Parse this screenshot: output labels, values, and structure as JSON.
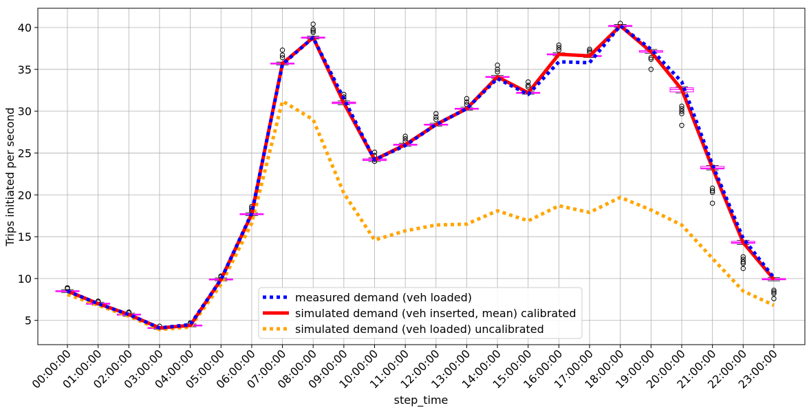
{
  "chart_data": {
    "type": "line",
    "title": "",
    "xlabel": "step_time",
    "ylabel": "Trips initiated per second",
    "categories": [
      "00:00:00",
      "01:00:00",
      "02:00:00",
      "03:00:00",
      "04:00:00",
      "05:00:00",
      "06:00:00",
      "07:00:00",
      "08:00:00",
      "09:00:00",
      "10:00:00",
      "11:00:00",
      "12:00:00",
      "13:00:00",
      "14:00:00",
      "15:00:00",
      "16:00:00",
      "17:00:00",
      "18:00:00",
      "19:00:00",
      "20:00:00",
      "21:00:00",
      "22:00:00",
      "23:00:00"
    ],
    "yticks": [
      5,
      10,
      15,
      20,
      25,
      30,
      35,
      40
    ],
    "ylim": [
      2.1,
      42.3
    ],
    "grid": true,
    "legend_position": "bottom-center",
    "series": [
      {
        "name": "measured demand (veh loaded)",
        "style": "dotted",
        "color": "#0000ff",
        "values": [
          8.5,
          7.0,
          5.7,
          4.1,
          4.5,
          9.9,
          17.8,
          35.6,
          38.8,
          31.5,
          24.2,
          25.9,
          28.4,
          30.3,
          33.9,
          32.0,
          35.9,
          35.8,
          40.2,
          37.4,
          33.5,
          23.6,
          14.8,
          10.1
        ]
      },
      {
        "name": "simulated demand (veh inserted, mean) calibrated",
        "style": "solid",
        "color": "#ff0000",
        "values": [
          8.5,
          7.0,
          5.7,
          4.1,
          4.4,
          9.9,
          17.7,
          35.7,
          38.8,
          31.0,
          24.2,
          26.0,
          28.4,
          30.3,
          34.1,
          32.2,
          36.8,
          36.6,
          40.2,
          37.1,
          32.6,
          23.2,
          14.3,
          9.9
        ]
      },
      {
        "name": "simulated demand (veh loaded) uncalibrated",
        "style": "dotted",
        "color": "#ffa500",
        "values": [
          8.1,
          6.8,
          5.5,
          3.9,
          4.2,
          9.3,
          16.6,
          31.2,
          29.0,
          20.2,
          14.6,
          15.7,
          16.4,
          16.5,
          18.1,
          16.9,
          18.7,
          17.9,
          19.7,
          18.2,
          16.4,
          12.4,
          8.5,
          6.8
        ]
      }
    ],
    "boxplot": {
      "box_color": "#ff00ff",
      "boxes": [
        {
          "median": 8.5,
          "q1": 8.45,
          "q3": 8.55,
          "outliers": [
            8.8,
            8.9
          ]
        },
        {
          "median": 7.0,
          "q1": 6.95,
          "q3": 7.05,
          "outliers": [
            7.2,
            7.3
          ]
        },
        {
          "median": 5.7,
          "q1": 5.65,
          "q3": 5.75,
          "outliers": [
            5.9,
            6.0
          ]
        },
        {
          "median": 4.1,
          "q1": 4.05,
          "q3": 4.15,
          "outliers": [
            4.3
          ]
        },
        {
          "median": 4.4,
          "q1": 4.35,
          "q3": 4.45,
          "outliers": [
            4.6,
            4.7
          ]
        },
        {
          "median": 9.9,
          "q1": 9.85,
          "q3": 9.95,
          "outliers": [
            10.2,
            10.3
          ]
        },
        {
          "median": 17.7,
          "q1": 17.65,
          "q3": 17.75,
          "outliers": [
            18.0,
            18.2,
            18.4,
            18.6
          ]
        },
        {
          "median": 35.7,
          "q1": 35.65,
          "q3": 35.75,
          "outliers": [
            36.4,
            36.7,
            37.3
          ]
        },
        {
          "median": 38.8,
          "q1": 38.75,
          "q3": 38.85,
          "outliers": [
            39.4,
            39.6,
            39.8,
            40.4
          ]
        },
        {
          "median": 31.0,
          "q1": 30.9,
          "q3": 31.1,
          "outliers": [
            31.4,
            31.7,
            32.0
          ]
        },
        {
          "median": 24.2,
          "q1": 24.1,
          "q3": 24.3,
          "outliers": [
            24.0,
            24.7,
            25.1
          ]
        },
        {
          "median": 26.0,
          "q1": 25.95,
          "q3": 26.05,
          "outliers": [
            26.4,
            26.7,
            27.0
          ]
        },
        {
          "median": 28.4,
          "q1": 28.35,
          "q3": 28.45,
          "outliers": [
            29.0,
            29.3,
            29.7
          ]
        },
        {
          "median": 30.3,
          "q1": 30.25,
          "q3": 30.35,
          "outliers": [
            30.8,
            31.1,
            31.5
          ]
        },
        {
          "median": 34.1,
          "q1": 34.05,
          "q3": 34.15,
          "outliers": [
            34.7,
            35.0,
            35.5
          ]
        },
        {
          "median": 32.2,
          "q1": 32.15,
          "q3": 32.25,
          "outliers": [
            32.9,
            33.1,
            33.5
          ]
        },
        {
          "median": 36.8,
          "q1": 36.75,
          "q3": 36.85,
          "outliers": [
            37.3,
            37.6,
            37.9
          ]
        },
        {
          "median": 36.6,
          "q1": 36.55,
          "q3": 36.65,
          "outliers": [
            37.0,
            37.2,
            37.4
          ]
        },
        {
          "median": 40.2,
          "q1": 40.15,
          "q3": 40.25,
          "outliers": [
            40.5
          ]
        },
        {
          "median": 37.1,
          "q1": 37.05,
          "q3": 37.25,
          "outliers": [
            36.2,
            36.4,
            35.0
          ]
        },
        {
          "median": 32.6,
          "q1": 32.3,
          "q3": 32.8,
          "outliers": [
            30.6,
            30.3,
            30.0,
            29.7,
            28.3
          ]
        },
        {
          "median": 23.2,
          "q1": 23.1,
          "q3": 23.4,
          "outliers": [
            20.8,
            20.5,
            20.3,
            19.0
          ]
        },
        {
          "median": 14.3,
          "q1": 14.2,
          "q3": 14.45,
          "outliers": [
            12.6,
            12.3,
            12.0,
            11.8,
            11.2
          ]
        },
        {
          "median": 9.9,
          "q1": 9.85,
          "q3": 10.0,
          "outliers": [
            8.6,
            8.4,
            8.2,
            7.6
          ]
        }
      ]
    }
  }
}
